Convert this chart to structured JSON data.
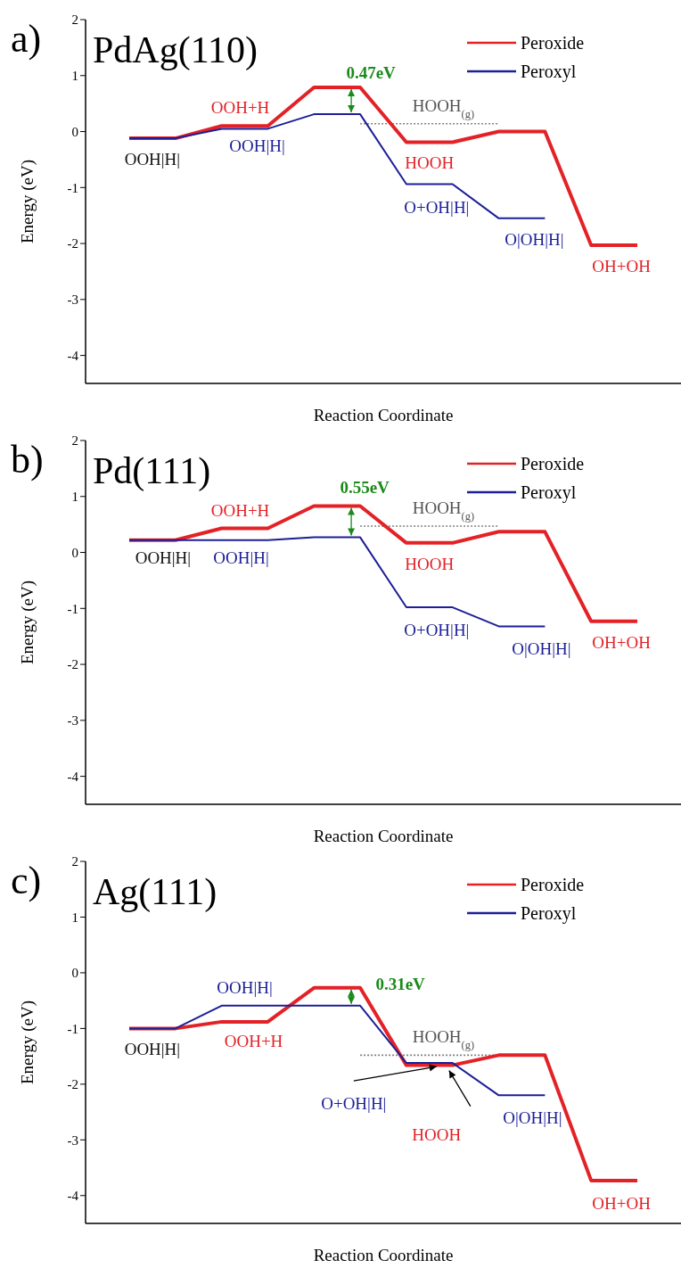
{
  "chart_data": [
    {
      "type": "line",
      "title": "PdAg(110)",
      "xlabel": "Reaction Coordinate",
      "ylabel": "Energy (eV)",
      "categories": [
        null,
        null,
        null,
        null,
        null,
        null,
        null,
        null,
        null,
        null,
        null,
        null
      ],
      "series": [
        {
          "name": "Peroxide",
          "color": "#e32227",
          "values": [
            -0.12,
            -0.12,
            0.1,
            0.1,
            0.79,
            0.79,
            -0.19,
            -0.19,
            0.0,
            0.0,
            -2.03,
            -2.03
          ]
        },
        {
          "name": "Peroxyl",
          "color": "#1c1f96",
          "values": [
            -0.12,
            -0.12,
            0.05,
            0.05,
            0.31,
            0.31,
            -0.94,
            -0.94,
            -1.55,
            -1.55,
            null,
            null
          ]
        }
      ],
      "ylim": [
        -4.5,
        2
      ],
      "yticks": [
        -4,
        -3,
        -2,
        -1,
        0,
        1,
        2
      ],
      "legend": "top right",
      "tick_labels": "y",
      "ref_lines": [
        {
          "axis": "y",
          "value": 0.14,
          "label": "HOOH$_{(g)}$",
          "color": "#808080",
          "line_style": "dotted"
        }
      ],
      "annotations": [
        "a)",
        "OOH|H|",
        "OOH+H",
        "OOH|H|",
        "0.47eV",
        "HOOH",
        "O+OH|H|",
        "O|OH|H|",
        "OH+OH"
      ]
    },
    {
      "type": "line",
      "title": "Pd(111)",
      "xlabel": "Reaction Coordinate",
      "ylabel": "Energy (eV)",
      "categories": [
        null,
        null,
        null,
        null,
        null,
        null,
        null,
        null,
        null,
        null,
        null,
        null
      ],
      "series": [
        {
          "name": "Peroxide",
          "color": "#e32227",
          "values": [
            0.22,
            0.22,
            0.43,
            0.43,
            0.83,
            0.83,
            0.17,
            0.17,
            0.37,
            0.37,
            -1.23,
            -1.23
          ]
        },
        {
          "name": "Peroxyl",
          "color": "#1c1f96",
          "values": [
            0.22,
            0.22,
            0.22,
            0.22,
            0.27,
            0.27,
            -0.98,
            -0.98,
            -1.32,
            -1.32,
            null,
            null
          ]
        }
      ],
      "ylim": [
        -4.5,
        2
      ],
      "yticks": [
        -4,
        -3,
        -2,
        -1,
        0,
        1,
        2
      ],
      "legend": "top right",
      "tick_labels": "y",
      "ref_lines": [
        {
          "axis": "y",
          "value": 0.47,
          "label": "HOOH$_{(g)}$",
          "color": "#808080",
          "line_style": "dotted"
        }
      ],
      "annotations": [
        "b)",
        "OOH|H|",
        "OOH+H",
        "OOH|H|",
        "0.55eV",
        "HOOH",
        "O+OH|H|",
        "O|OH|H|",
        "OH+OH"
      ]
    },
    {
      "type": "line",
      "title": "Ag(111)",
      "xlabel": "Reaction Coordinate",
      "ylabel": "Energy (eV)",
      "categories": [
        null,
        null,
        null,
        null,
        null,
        null,
        null,
        null,
        null,
        null,
        null,
        null
      ],
      "series": [
        {
          "name": "Peroxide",
          "color": "#e32227",
          "values": [
            -1.0,
            -1.0,
            -0.88,
            -0.88,
            -0.27,
            -0.27,
            -1.66,
            -1.66,
            -1.48,
            -1.48,
            -3.73,
            -3.73
          ]
        },
        {
          "name": "Peroxyl",
          "color": "#1c1f96",
          "values": [
            -1.0,
            -1.0,
            -0.59,
            -0.59,
            -0.59,
            -0.59,
            -1.62,
            -1.62,
            -2.2,
            -2.2,
            null,
            null
          ]
        }
      ],
      "ylim": [
        -4.5,
        2
      ],
      "yticks": [
        -4,
        -3,
        -2,
        -1,
        0,
        1,
        2
      ],
      "legend": "top right",
      "tick_labels": "y",
      "ref_lines": [
        {
          "axis": "y",
          "value": -1.48,
          "label": "HOOH$_{(g)}$",
          "color": "#808080",
          "line_style": "dotted"
        }
      ],
      "annotations": [
        "c)",
        "OOH|H|",
        "OOH|H|",
        "OOH+H",
        "0.31eV",
        "O+OH|H|",
        "HOOH",
        "O|OH|H|",
        "OH+OH"
      ]
    }
  ]
}
